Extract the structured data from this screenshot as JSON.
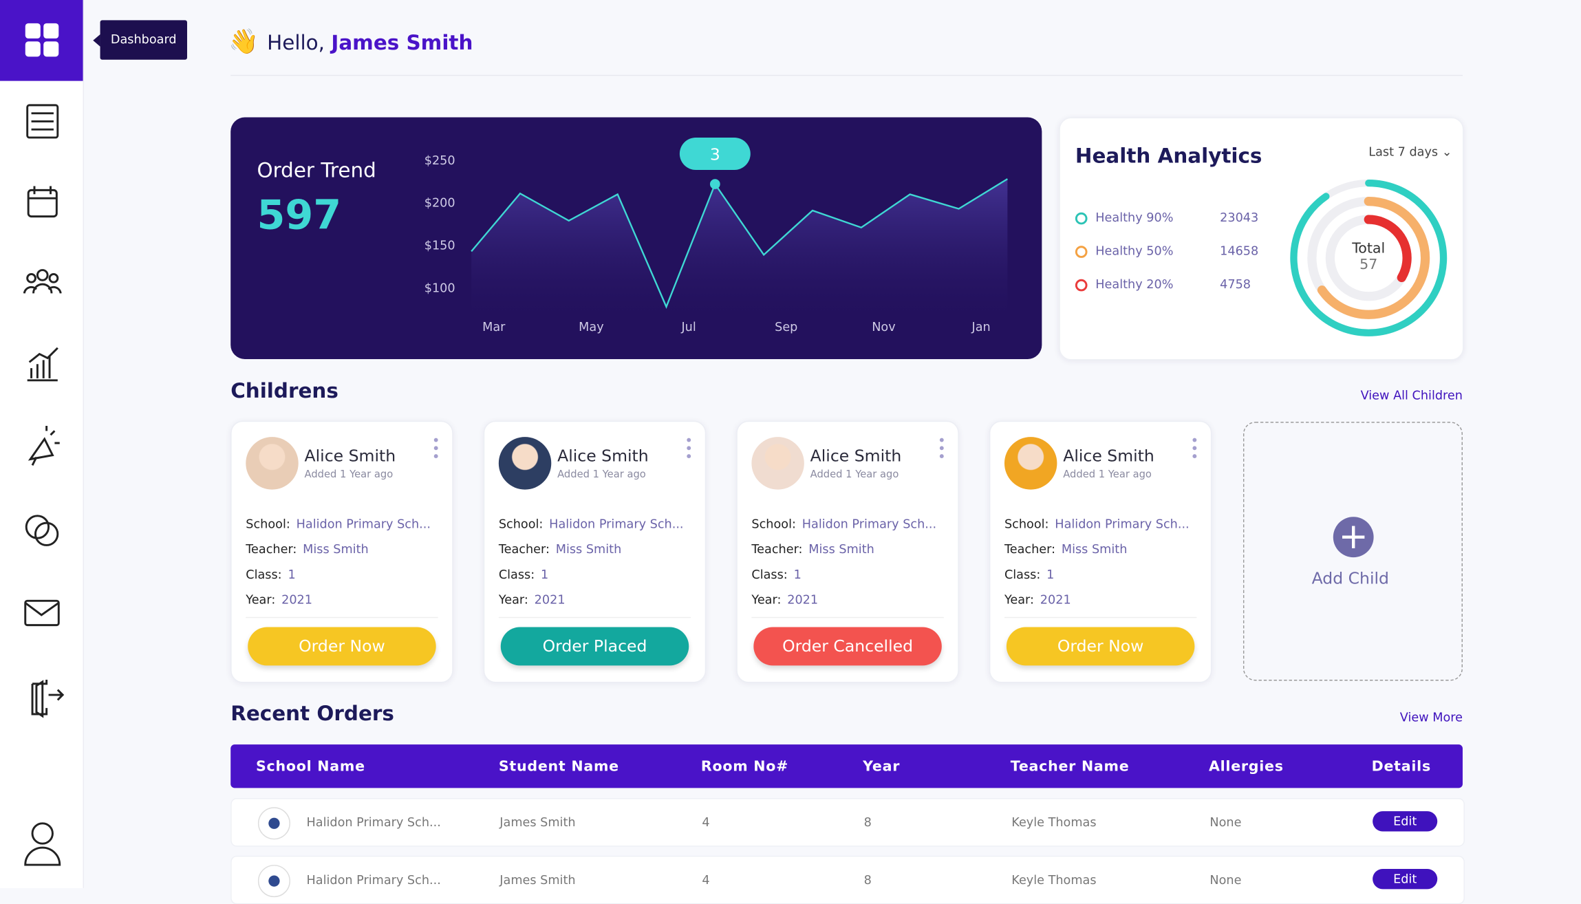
{
  "sidebar": {
    "tooltip": "Dashboard"
  },
  "header": {
    "greeting": "Hello,",
    "user_name": "James Smith"
  },
  "chart_data": {
    "type": "line",
    "title": "Order Trend",
    "total": 597,
    "categories": [
      null,
      "Mar",
      null,
      "May",
      null,
      "Jul",
      null,
      "Sep",
      null,
      "Nov",
      null,
      "Jan"
    ],
    "values": [
      143,
      211,
      179,
      210,
      78,
      222,
      139,
      191,
      171,
      210,
      193,
      228
    ],
    "color": "#3fd8d4",
    "ylim": [
      70,
      260
    ],
    "yticks": [
      {
        "value": 100,
        "label": "$100"
      },
      {
        "value": 150,
        "label": "$150"
      },
      {
        "value": 200,
        "label": "$200"
      },
      {
        "value": 250,
        "label": "$250"
      }
    ],
    "annotation": {
      "index": 5,
      "text": "3"
    }
  },
  "health": {
    "title": "Health Analytics",
    "period": "Last 7 days",
    "items": [
      {
        "label": "Healthy 90%",
        "value": 23043,
        "color": "#2cc3b5"
      },
      {
        "label": "Healthy 50%",
        "value": 14658,
        "color": "#f4a142"
      },
      {
        "label": "Healthy 20%",
        "value": 4758,
        "color": "#ea3b3b"
      }
    ],
    "total_label": "Total",
    "total": 57
  },
  "children": {
    "title": "Childrens",
    "view_all": "View All Children",
    "field_labels": {
      "school": "School:",
      "teacher": "Teacher:",
      "class": "Class:",
      "year": "Year:"
    },
    "cards": [
      {
        "name": "Alice Smith",
        "added": "Added 1 Year ago",
        "school": "Halidon Primary Sch...",
        "teacher": "Miss Smith",
        "class": "1",
        "year": "2021",
        "button": "Order Now",
        "button_color": "#f6c623"
      },
      {
        "name": "Alice Smith",
        "added": "Added 1 Year ago",
        "school": "Halidon Primary Sch...",
        "teacher": "Miss Smith",
        "class": "1",
        "year": "2021",
        "button": "Order Placed",
        "button_color": "#13a89e"
      },
      {
        "name": "Alice Smith",
        "added": "Added 1 Year ago",
        "school": "Halidon Primary Sch...",
        "teacher": "Miss Smith",
        "class": "1",
        "year": "2021",
        "button": "Order Cancelled",
        "button_color": "#f3534f"
      },
      {
        "name": "Alice Smith",
        "added": "Added 1 Year ago",
        "school": "Halidon Primary Sch...",
        "teacher": "Miss Smith",
        "class": "1",
        "year": "2021",
        "button": "Order Now",
        "button_color": "#f6c623"
      }
    ],
    "add_child": "Add Child"
  },
  "orders": {
    "title": "Recent Orders",
    "view_more": "View More",
    "columns": [
      "School Name",
      "Student Name",
      "Room No#",
      "Year",
      "Teacher Name",
      "Allergies",
      "Details"
    ],
    "rows": [
      [
        "Halidon Primary Sch...",
        "James Smith",
        "4",
        "8",
        "Keyle Thomas",
        "None",
        "Edit"
      ],
      [
        "Halidon Primary Sch...",
        "James Smith",
        "4",
        "8",
        "Keyle Thomas",
        "None",
        "Edit"
      ]
    ]
  }
}
